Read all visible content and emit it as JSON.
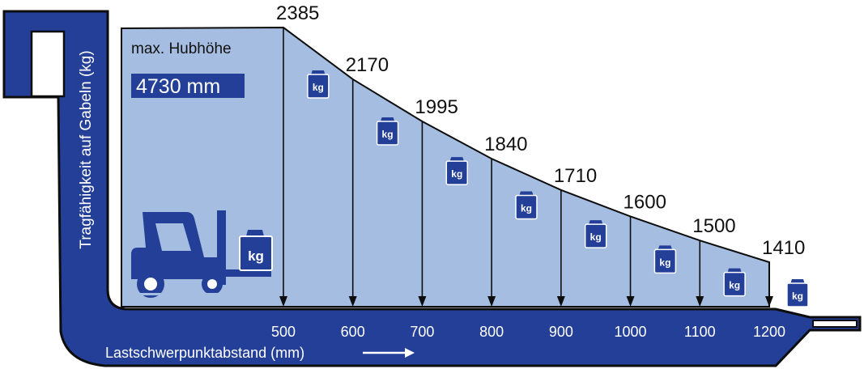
{
  "chart_data": {
    "type": "area",
    "x": [
      500,
      600,
      700,
      800,
      900,
      1000,
      1100,
      1200
    ],
    "values": [
      2385,
      2170,
      1995,
      1840,
      1710,
      1600,
      1500,
      1410
    ],
    "xlabel": "Lastschwerpunktabstand (mm)",
    "ylabel": "Tragfähigkeit auf Gabeln (kg)",
    "annotation_label": "max. Hubhöhe",
    "annotation_value": "4730 mm",
    "weight_label": "kg",
    "colors": {
      "fork": "#233f97",
      "fill": "#a4bde0",
      "outline": "#0d0d0d",
      "weight": "#233f97",
      "text": "#111111",
      "axis_text": "#ffffff"
    }
  }
}
